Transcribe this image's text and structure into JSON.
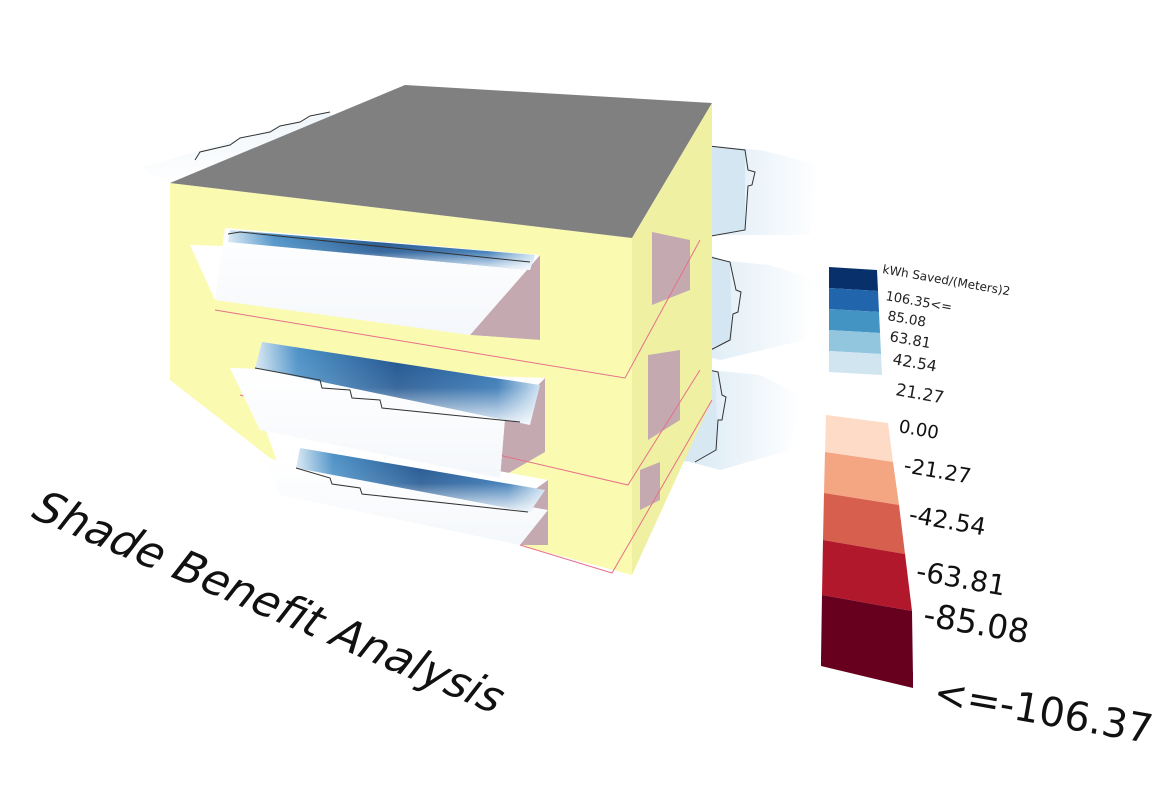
{
  "title": "Shade Benefit Analysis",
  "legend": {
    "unit_label": "kWh Saved/(Meters)2",
    "positive_labels": [
      "106.35<=",
      "85.08",
      "63.81",
      "42.54",
      "21.27"
    ],
    "negative_labels": [
      "0.00",
      "-21.27",
      "-42.54",
      "-63.81",
      "-85.08",
      "<=-106.37"
    ],
    "positive_colors": [
      "#08306b",
      "#2166ac",
      "#4393c3",
      "#92c5de",
      "#d1e5f0"
    ],
    "negative_colors": [
      "#fddbc7",
      "#f4a582",
      "#d6604d",
      "#b2182b",
      "#67001f"
    ]
  },
  "colors": {
    "wall": "#fafab0",
    "wall_dark": "#ecec9c",
    "roof": "#808080",
    "interior": "#c4aab0",
    "floor_line": "#e6708a"
  }
}
